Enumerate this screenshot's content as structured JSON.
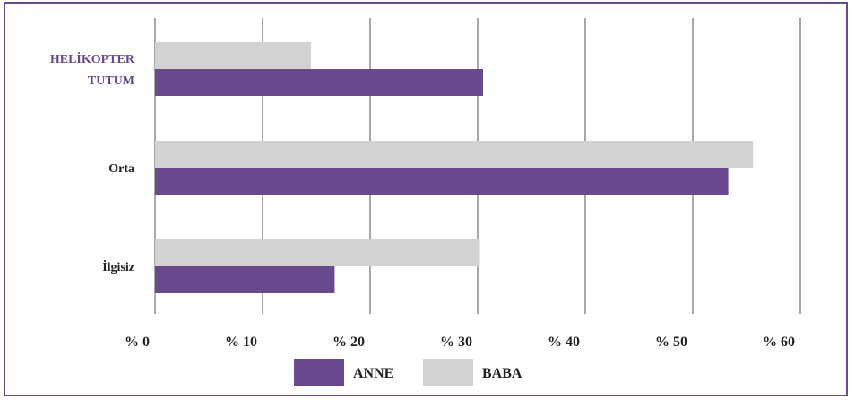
{
  "chart_data": {
    "type": "bar",
    "orientation": "horizontal",
    "categories": [
      {
        "lines": [
          "HELİKOPTER",
          "TUTUM"
        ],
        "color": "#6a4a8e"
      },
      {
        "lines": [
          "Orta"
        ],
        "color": "#222222"
      },
      {
        "lines": [
          "İlgisiz"
        ],
        "color": "#222222"
      }
    ],
    "series": [
      {
        "name": "ANNE",
        "color": "#6a4a8e",
        "values": [
          30.5,
          53.3,
          16.7
        ]
      },
      {
        "name": "BABA",
        "color": "#d2d2d2",
        "values": [
          14.5,
          55.6,
          30.2
        ]
      }
    ],
    "xlim": [
      0,
      60
    ],
    "xticks": [
      0,
      10,
      20,
      30,
      40,
      50,
      60
    ],
    "xtick_labels": [
      "% 0",
      "% 10",
      "% 20",
      "% 30",
      "% 40",
      "% 50",
      "% 60"
    ],
    "grid": true,
    "legend_position": "bottom-center",
    "title": "",
    "xlabel": "",
    "ylabel": ""
  }
}
